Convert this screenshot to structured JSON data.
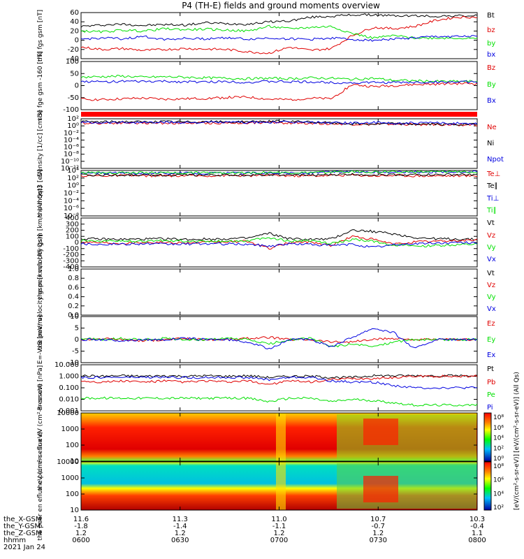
{
  "title": "P4 (TH-E) fields and ground moments overview",
  "colors": {
    "black": "#000000",
    "red": "#e00000",
    "green": "#00e000",
    "blue": "#0000e0",
    "ne": "#e00000",
    "ni": "#000000",
    "npot": "#0000e0"
  },
  "chart_data": [
    {
      "type": "line",
      "id": "fgs",
      "ylabel": [
        "the",
        "fgs",
        "gsm",
        "[nT]"
      ],
      "yticks": [
        "60",
        "40",
        "20",
        "0",
        "-20",
        "-40"
      ],
      "ylim": [
        -40,
        60
      ],
      "series": [
        {
          "name": "Bt",
          "color": "black",
          "values": [
            30,
            33,
            35,
            32,
            34,
            33,
            38,
            36,
            35,
            40,
            42,
            50,
            52,
            55,
            55,
            53,
            53,
            52,
            53,
            53
          ]
        },
        {
          "name": "bz",
          "color": "red",
          "values": [
            -15,
            -20,
            -18,
            -22,
            -20,
            -18,
            -19,
            -20,
            -25,
            -28,
            -15,
            -22,
            -18,
            10,
            28,
            25,
            30,
            43,
            50,
            50
          ]
        },
        {
          "name": "by",
          "color": "green",
          "values": [
            20,
            18,
            22,
            20,
            25,
            23,
            24,
            22,
            20,
            30,
            25,
            28,
            30,
            15,
            5,
            10,
            5,
            5,
            5,
            3
          ]
        },
        {
          "name": "bx",
          "color": "blue",
          "values": [
            2,
            5,
            3,
            8,
            2,
            4,
            3,
            6,
            2,
            5,
            3,
            2,
            5,
            2,
            0,
            3,
            5,
            8,
            8,
            8
          ]
        }
      ]
    },
    {
      "type": "line",
      "id": "fge",
      "ylabel": [
        "the",
        "fge",
        "gsm",
        "-160",
        "[nT]"
      ],
      "yticks": [
        "100",
        "50",
        "0",
        "-50",
        "-100"
      ],
      "ylim": [
        -130,
        100
      ],
      "series": [
        {
          "name": "Bz",
          "color": "red",
          "values": [
            -80,
            -82,
            -78,
            -75,
            -80,
            -78,
            -76,
            -72,
            -70,
            -80,
            -82,
            -75,
            -78,
            -10,
            -20,
            -15,
            -10,
            -8,
            -5,
            -5
          ]
        },
        {
          "name": "By",
          "color": "green",
          "values": [
            25,
            28,
            30,
            25,
            27,
            25,
            22,
            20,
            18,
            20,
            18,
            22,
            20,
            15,
            20,
            10,
            8,
            5,
            5,
            5
          ]
        },
        {
          "name": "Bx",
          "color": "blue",
          "values": [
            5,
            3,
            5,
            4,
            5,
            3,
            2,
            5,
            0,
            5,
            3,
            2,
            0,
            -2,
            0,
            0,
            0,
            2,
            2,
            2
          ]
        }
      ]
    },
    {
      "type": "line",
      "id": "density",
      "ylabel": [
        "Density",
        "[1/cc]",
        "[cm-3]"
      ],
      "yticks": [
        "10²",
        "10⁰",
        "10⁻²",
        "10⁻⁴",
        "10⁻⁶",
        "10⁻⁸",
        "10⁻¹⁰",
        "10⁻¹²"
      ],
      "series": [
        {
          "name": "Ne",
          "color": "ne",
          "values": [
            0.8,
            0.8,
            0.9,
            0.8,
            0.8,
            0.8,
            0.8,
            0.8,
            0.9,
            1.0,
            0.8,
            0.8,
            0.6,
            0.5,
            0.4,
            0.5,
            0.4,
            0.4,
            0.3,
            0.3
          ]
        },
        {
          "name": "Ni",
          "color": "ni",
          "values": [
            1.2,
            1.1,
            1.2,
            1.1,
            1.2,
            1.1,
            1.2,
            1.1,
            1.2,
            1.3,
            1.2,
            1.1,
            0.8,
            0.6,
            0.5,
            0.6,
            0.5,
            0.5,
            0.4,
            0.4
          ]
        },
        {
          "name": "Npot",
          "color": "npot",
          "values": [
            1.0,
            1.0,
            1.0,
            1.0,
            1.0,
            1.0,
            1.0,
            1.0,
            1.0,
            1.0,
            1.0,
            1.0,
            0.9,
            0.8,
            0.9,
            0.7,
            0.8,
            0.8,
            0.7,
            0.7
          ]
        }
      ]
    },
    {
      "type": "line",
      "id": "temp",
      "ylabel": [
        "the",
        "moqt3",
        "[eV]"
      ],
      "yticks": [
        "10⁴",
        "10²",
        "10⁰",
        "10⁻²",
        "10⁻⁴",
        "10⁻⁶",
        "10⁻⁸"
      ],
      "series": [
        {
          "name": "Te⊥",
          "color": "red",
          "values": [
            2.6,
            2.6,
            2.7,
            2.6,
            2.6,
            2.6,
            2.6,
            2.7,
            2.6,
            2.8,
            2.6,
            2.6,
            2.7,
            2.8,
            2.6,
            2.7,
            2.6,
            2.6,
            2.6,
            2.6
          ]
        },
        {
          "name": "Te∥",
          "color": "black",
          "values": [
            2.8,
            2.8,
            2.8,
            2.8,
            2.8,
            2.8,
            2.8,
            2.8,
            2.8,
            2.9,
            2.8,
            2.8,
            2.9,
            3.0,
            2.9,
            2.9,
            2.9,
            2.9,
            2.9,
            2.9
          ]
        },
        {
          "name": "Ti⊥",
          "color": "blue",
          "values": [
            3.3,
            3.3,
            3.3,
            3.3,
            3.3,
            3.3,
            3.3,
            3.3,
            3.3,
            3.4,
            3.3,
            3.3,
            3.6,
            3.7,
            3.6,
            3.6,
            3.6,
            3.6,
            3.7,
            3.7
          ]
        },
        {
          "name": "Ti∥",
          "color": "green",
          "values": [
            3.4,
            3.4,
            3.4,
            3.4,
            3.4,
            3.4,
            3.4,
            3.4,
            3.4,
            3.5,
            3.4,
            3.4,
            3.6,
            3.7,
            3.6,
            3.7,
            3.6,
            3.6,
            3.7,
            3.7
          ]
        }
      ]
    },
    {
      "type": "line",
      "id": "peir_vel",
      "ylabel": [
        "the",
        "peir",
        "velocity",
        "gsm",
        "[km/s (All Qs)]"
      ],
      "yticks": [
        "400",
        "300",
        "200",
        "100",
        "0",
        "-100",
        "-200",
        "-300",
        "-400"
      ],
      "ylim": [
        -400,
        400
      ],
      "series": [
        {
          "name": "Vt",
          "color": "black",
          "values": [
            60,
            55,
            50,
            55,
            60,
            50,
            55,
            60,
            70,
            150,
            60,
            50,
            55,
            200,
            180,
            140,
            80,
            60,
            55,
            50
          ]
        },
        {
          "name": "Vz",
          "color": "red",
          "values": [
            10,
            0,
            -10,
            5,
            0,
            -5,
            0,
            10,
            20,
            -100,
            0,
            10,
            -50,
            100,
            50,
            -30,
            10,
            20,
            30,
            40
          ]
        },
        {
          "name": "Vy",
          "color": "green",
          "values": [
            30,
            20,
            25,
            20,
            30,
            25,
            20,
            25,
            30,
            80,
            20,
            30,
            -20,
            50,
            20,
            -40,
            -60,
            -50,
            -40,
            -30
          ]
        },
        {
          "name": "Vx",
          "color": "blue",
          "values": [
            -20,
            -30,
            -25,
            -20,
            -30,
            -25,
            -20,
            -25,
            -30,
            -60,
            -20,
            -30,
            -50,
            -30,
            -80,
            -40,
            -20,
            -10,
            -5,
            0
          ]
        }
      ]
    },
    {
      "type": "line",
      "id": "peer_vel",
      "ylabel": [
        "the",
        "peer",
        "velocity",
        "gsm",
        "[km/s (All Qs)]"
      ],
      "yticks": [
        "1.0",
        "0.8",
        "0.6",
        "0.4",
        "0.2",
        "0.0"
      ],
      "ylim": [
        0,
        1
      ],
      "series": [
        {
          "name": "Vt",
          "color": "black",
          "values": []
        },
        {
          "name": "Vz",
          "color": "red",
          "values": []
        },
        {
          "name": "Vy",
          "color": "green",
          "values": []
        },
        {
          "name": "Vx",
          "color": "blue",
          "values": []
        }
      ]
    },
    {
      "type": "line",
      "id": "efield",
      "ylabel": [
        "E=-VxB",
        "[mV/m]"
      ],
      "yticks": [
        "10",
        "5",
        "0",
        "-5",
        "-10"
      ],
      "ylim": [
        -10,
        10
      ],
      "series": [
        {
          "name": "Ez",
          "color": "red",
          "values": [
            0,
            0.5,
            0,
            -0.5,
            0,
            0.5,
            0,
            0,
            0.5,
            1,
            0,
            0,
            -1,
            -1,
            0,
            0.5,
            0,
            0,
            0,
            0
          ]
        },
        {
          "name": "Ey",
          "color": "green",
          "values": [
            0.5,
            0,
            0.5,
            0,
            0.5,
            0,
            0,
            0.5,
            0,
            -2,
            0,
            0.5,
            -3,
            -2,
            -3,
            -1,
            0,
            0,
            0,
            0
          ]
        },
        {
          "name": "Ex",
          "color": "blue",
          "values": [
            0,
            0,
            -0.5,
            0,
            0,
            0.5,
            0,
            0,
            -1,
            -4,
            0,
            0,
            -3,
            1,
            5,
            3,
            -4,
            0,
            0,
            0
          ]
        }
      ]
    },
    {
      "type": "line",
      "id": "pressure",
      "ylabel": [
        "Pressure",
        "[nPa]"
      ],
      "yticks": [
        "10.000",
        "1.000",
        "0.100",
        "0.010",
        "0.001"
      ],
      "series": [
        {
          "name": "Pt",
          "color": "black",
          "values": [
            0.05,
            0.0,
            0.05,
            0.0,
            0.05,
            0.0,
            0.05,
            0.0,
            0.05,
            -0.1,
            0.0,
            0.0,
            -0.1,
            -0.1,
            0.05,
            0.05,
            0.05,
            0.05,
            0.05,
            0.05
          ]
        },
        {
          "name": "Pb",
          "color": "red",
          "values": [
            -0.4,
            -0.5,
            -0.4,
            -0.5,
            -0.4,
            -0.5,
            -0.4,
            -0.5,
            -0.4,
            -0.7,
            -0.4,
            -0.5,
            -0.3,
            -0.2,
            -0.2,
            -0.1,
            0.0,
            0.0,
            0.0,
            0.0
          ]
        },
        {
          "name": "Pe",
          "color": "green",
          "values": [
            -1.9,
            -1.9,
            -1.9,
            -1.9,
            -1.9,
            -1.9,
            -1.9,
            -1.9,
            -1.9,
            -2.2,
            -1.9,
            -1.9,
            -2.2,
            -2.0,
            -2.1,
            -2.3,
            -2.5,
            -2.5,
            -2.5,
            -2.5
          ]
        },
        {
          "name": "Pi",
          "color": "blue",
          "values": [
            -0.1,
            -0.1,
            -0.1,
            -0.1,
            -0.1,
            -0.1,
            -0.1,
            -0.1,
            -0.1,
            -0.3,
            -0.1,
            -0.1,
            -0.4,
            -0.5,
            -0.5,
            -0.8,
            -1.0,
            -1.0,
            -1.0,
            -1.0
          ]
        }
      ]
    },
    {
      "type": "heatmap",
      "id": "peir_en",
      "ylabel": [
        "the",
        "peir",
        "en",
        "eflux",
        "eV",
        "(cm²-s-",
        "sr-eV)"
      ],
      "yticks": [
        "10000",
        "1000",
        "100",
        "10"
      ],
      "zticks": [
        "10⁸",
        "10⁶",
        "10⁴",
        "10²",
        "10⁰"
      ]
    },
    {
      "type": "heatmap",
      "id": "peer_en",
      "ylabel": [
        "the",
        "peer",
        "en",
        "eflux",
        "eV",
        "(cm²-s-",
        "sr-eV)"
      ],
      "yticks": [
        "10000",
        "1000",
        "100",
        "10"
      ],
      "zticks": [
        "10⁸",
        "10⁶",
        "10⁴",
        "10²"
      ]
    }
  ],
  "colorbar_label": "[eV/(cm²-s-sr-eV)]",
  "colorbar_label2": "[eV/(cm²-s-sr-eV)] (All Qs)",
  "xaxis": {
    "row_labels": [
      "the_X-GSM",
      "the_Y-GSM",
      "the_Z-GSM",
      "hhmm",
      "2021 Jan 24"
    ],
    "ticks": [
      [
        "11.6",
        "-1.8",
        "1.2",
        "0600"
      ],
      [
        "11.3",
        "-1.4",
        "1.2",
        "0630"
      ],
      [
        "11.0",
        "-1.1",
        "1.2",
        "0700"
      ],
      [
        "10.7",
        "-0.7",
        "1.2",
        "0730"
      ],
      [
        "10.3",
        "-0.4",
        "1.1",
        "0800"
      ]
    ]
  }
}
